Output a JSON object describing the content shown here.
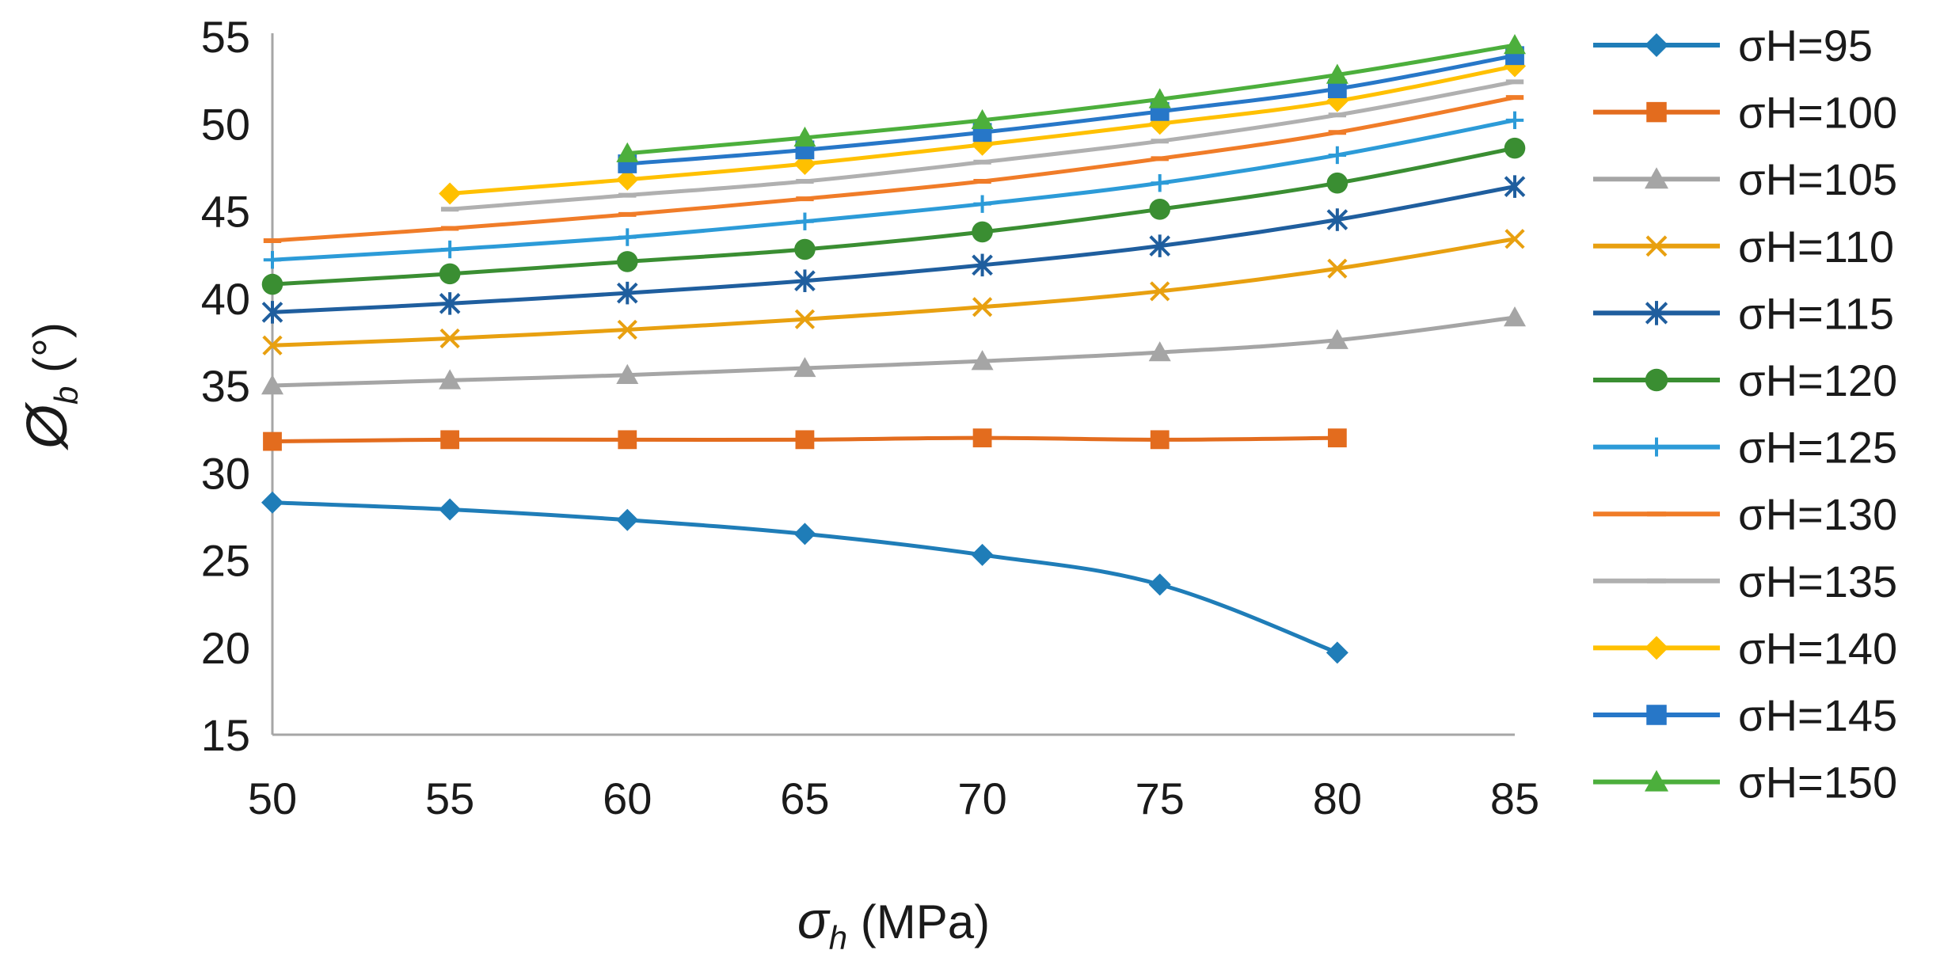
{
  "chart_data": {
    "type": "line",
    "xlabel": {
      "symbol": "σ",
      "subscript": "h",
      "unit": " (MPa)"
    },
    "ylabel": {
      "symbol": "Ø",
      "subscript": "b",
      "unit": " (°)"
    },
    "xlim": [
      50,
      85
    ],
    "ylim": [
      15,
      55
    ],
    "x_ticks": [
      "50",
      "55",
      "60",
      "65",
      "70",
      "75",
      "80",
      "85"
    ],
    "y_ticks": [
      "15",
      "20",
      "25",
      "30",
      "35",
      "40",
      "45",
      "50",
      "55"
    ],
    "grid": false,
    "legend_position": "right",
    "series": [
      {
        "name": "σH=95",
        "color": "#1F7DB8",
        "marker": "diamond",
        "x": [
          50,
          55,
          60,
          65,
          70,
          75,
          80
        ],
        "values": [
          28.3,
          27.9,
          27.3,
          26.5,
          25.3,
          23.6,
          19.7
        ]
      },
      {
        "name": "σH=100",
        "color": "#E36C1E",
        "marker": "square",
        "x": [
          50,
          55,
          60,
          65,
          70,
          75,
          80
        ],
        "values": [
          31.8,
          31.9,
          31.9,
          31.9,
          32.0,
          31.9,
          32.0
        ]
      },
      {
        "name": "σH=105",
        "color": "#A5A5A5",
        "marker": "triangle",
        "x": [
          50,
          55,
          60,
          65,
          70,
          75,
          80,
          85
        ],
        "values": [
          35.0,
          35.3,
          35.6,
          36.0,
          36.4,
          36.9,
          37.6,
          38.9
        ]
      },
      {
        "name": "σH=110",
        "color": "#E8A010",
        "marker": "x",
        "x": [
          50,
          55,
          60,
          65,
          70,
          75,
          80,
          85
        ],
        "values": [
          37.3,
          37.7,
          38.2,
          38.8,
          39.5,
          40.4,
          41.7,
          43.4
        ]
      },
      {
        "name": "σH=115",
        "color": "#1F5E9E",
        "marker": "star",
        "x": [
          50,
          55,
          60,
          65,
          70,
          75,
          80,
          85
        ],
        "values": [
          39.2,
          39.7,
          40.3,
          41.0,
          41.9,
          43.0,
          44.5,
          46.4
        ]
      },
      {
        "name": "σH=120",
        "color": "#3A8E32",
        "marker": "circle",
        "x": [
          50,
          55,
          60,
          65,
          70,
          75,
          80,
          85
        ],
        "values": [
          40.8,
          41.4,
          42.1,
          42.8,
          43.8,
          45.1,
          46.6,
          48.6
        ]
      },
      {
        "name": "σH=125",
        "color": "#2C9BD8",
        "marker": "plus",
        "x": [
          50,
          55,
          60,
          65,
          70,
          75,
          80,
          85
        ],
        "values": [
          42.2,
          42.8,
          43.5,
          44.4,
          45.4,
          46.6,
          48.2,
          50.2
        ]
      },
      {
        "name": "σH=130",
        "color": "#F07C28",
        "marker": "dash",
        "x": [
          50,
          55,
          60,
          65,
          70,
          75,
          80,
          85
        ],
        "values": [
          43.3,
          44.0,
          44.8,
          45.7,
          46.7,
          48.0,
          49.5,
          51.5
        ]
      },
      {
        "name": "σH=135",
        "color": "#B0B0B0",
        "marker": "dash",
        "x": [
          55,
          60,
          65,
          70,
          75,
          80,
          85
        ],
        "values": [
          45.1,
          45.9,
          46.7,
          47.8,
          49.0,
          50.5,
          52.4
        ]
      },
      {
        "name": "σH=140",
        "color": "#FFC000",
        "marker": "diamond",
        "x": [
          55,
          60,
          65,
          70,
          75,
          80,
          85
        ],
        "values": [
          46.0,
          46.8,
          47.7,
          48.8,
          50.0,
          51.3,
          53.3
        ]
      },
      {
        "name": "σH=145",
        "color": "#2777C8",
        "marker": "square",
        "x": [
          60,
          65,
          70,
          75,
          80,
          85
        ],
        "values": [
          47.7,
          48.5,
          49.5,
          50.7,
          52.0,
          53.9
        ]
      },
      {
        "name": "σH=150",
        "color": "#4CAF3C",
        "marker": "triangle",
        "x": [
          60,
          65,
          70,
          75,
          80,
          85
        ],
        "values": [
          48.3,
          49.2,
          50.2,
          51.4,
          52.8,
          54.5
        ]
      }
    ]
  }
}
